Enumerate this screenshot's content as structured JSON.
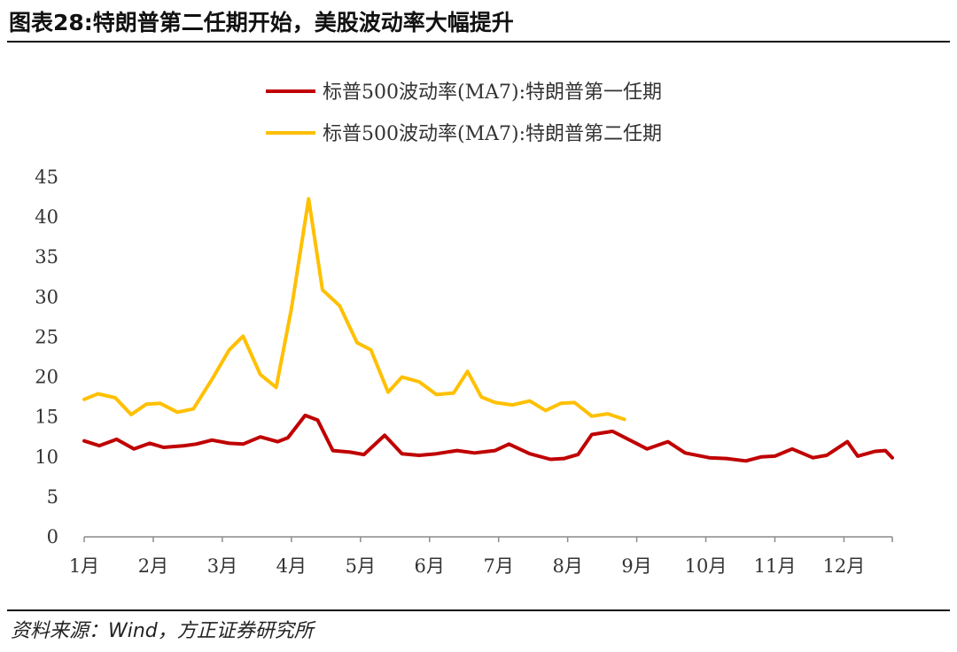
{
  "title": "图表28:特朗普第二任期开始，美股波动率大幅提升",
  "source": "资料来源：Wind，方正证券研究所",
  "chart_data": {
    "type": "line",
    "title": "",
    "xlabel": "",
    "ylabel": "",
    "x_tick_labels": [
      "1月",
      "2月",
      "3月",
      "4月",
      "5月",
      "6月",
      "7月",
      "8月",
      "9月",
      "10月",
      "11月",
      "12月"
    ],
    "xlim": [
      1,
      12.7
    ],
    "ylim": [
      0,
      45
    ],
    "y_ticks": [
      0,
      5,
      10,
      15,
      20,
      25,
      30,
      35,
      40,
      45
    ],
    "grid": false,
    "legend_position": "top-center",
    "series": [
      {
        "name": "标普500波动率(MA7):特朗普第一任期",
        "color": "#C00000",
        "x": [
          1.0,
          1.22,
          1.47,
          1.72,
          1.95,
          2.15,
          2.45,
          2.62,
          2.85,
          3.1,
          3.3,
          3.55,
          3.8,
          3.95,
          4.2,
          4.38,
          4.6,
          4.85,
          5.05,
          5.35,
          5.6,
          5.85,
          6.1,
          6.4,
          6.65,
          6.95,
          7.15,
          7.45,
          7.75,
          7.95,
          8.15,
          8.35,
          8.65,
          8.9,
          9.15,
          9.45,
          9.7,
          10.05,
          10.3,
          10.58,
          10.8,
          11.0,
          11.25,
          11.55,
          11.75,
          12.05,
          12.2,
          12.45,
          12.6,
          12.7
        ],
        "values": [
          12.0,
          11.4,
          12.2,
          11.0,
          11.7,
          11.2,
          11.4,
          11.6,
          12.1,
          11.7,
          11.6,
          12.5,
          11.9,
          12.4,
          15.2,
          14.6,
          10.8,
          10.6,
          10.3,
          12.7,
          10.4,
          10.2,
          10.4,
          10.8,
          10.5,
          10.8,
          11.6,
          10.4,
          9.7,
          9.8,
          10.3,
          12.8,
          13.2,
          12.1,
          11.0,
          11.9,
          10.5,
          9.9,
          9.8,
          9.5,
          10.0,
          10.1,
          11.0,
          9.9,
          10.2,
          11.9,
          10.1,
          10.7,
          10.8,
          9.9
        ]
      },
      {
        "name": "标普500波动率(MA7):特朗普第二任期",
        "color": "#FFC000",
        "x": [
          1.0,
          1.2,
          1.45,
          1.68,
          1.9,
          2.1,
          2.35,
          2.58,
          2.85,
          3.1,
          3.3,
          3.55,
          3.78,
          4.0,
          4.25,
          4.45,
          4.7,
          4.95,
          5.15,
          5.4,
          5.6,
          5.85,
          6.1,
          6.35,
          6.55,
          6.75,
          6.95,
          7.2,
          7.45,
          7.68,
          7.9,
          8.1,
          8.35,
          8.58,
          8.82
        ],
        "values": [
          17.2,
          17.9,
          17.4,
          15.3,
          16.6,
          16.7,
          15.6,
          16.0,
          19.7,
          23.4,
          25.1,
          20.3,
          18.7,
          28.5,
          42.3,
          30.9,
          28.9,
          24.3,
          23.4,
          18.1,
          20.0,
          19.4,
          17.8,
          18.0,
          20.7,
          17.5,
          16.8,
          16.5,
          17.0,
          15.8,
          16.7,
          16.8,
          15.1,
          15.4,
          14.7
        ]
      }
    ]
  }
}
